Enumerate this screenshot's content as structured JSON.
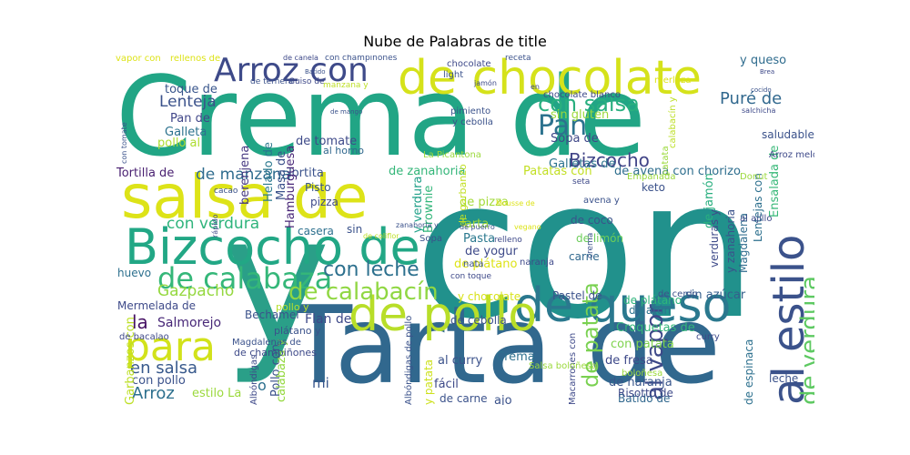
{
  "title": "Nube de Palabras de title",
  "chart_data": {
    "type": "wordcloud",
    "title": "Nube de Palabras de title",
    "colormap": "viridis",
    "words": [
      {
        "text": "con",
        "color": "#21918c"
      },
      {
        "text": "Crema de",
        "color": "#21a585"
      },
      {
        "text": "Tarta de",
        "color": "#31688e"
      },
      {
        "text": "y",
        "color": "#2a9f88"
      },
      {
        "text": "salsa de",
        "color": "#dde318"
      },
      {
        "text": "de chocolate",
        "color": "#d5e21a"
      },
      {
        "text": "Bizcocho de",
        "color": "#22a785"
      },
      {
        "text": "de queso",
        "color": "#2a788e"
      },
      {
        "text": "de pollo",
        "color": "#b8de29"
      },
      {
        "text": "para",
        "color": "#d2e21b"
      },
      {
        "text": "Arroz con",
        "color": "#3e4a89"
      },
      {
        "text": "al estilo",
        "color": "#3b528b"
      },
      {
        "text": "de calabaza",
        "color": "#35b779"
      },
      {
        "text": "de calabacín",
        "color": "#90d743"
      },
      {
        "text": "Pan",
        "color": "#2c728e"
      },
      {
        "text": "con salsa",
        "color": "#29af7f"
      },
      {
        "text": "Bizcocho",
        "color": "#414487"
      },
      {
        "text": "con leche",
        "color": "#2d708e"
      },
      {
        "text": "de verdura",
        "color": "#5ec962"
      },
      {
        "text": "al vapor",
        "color": "#3e4989"
      },
      {
        "text": "de patata",
        "color": "#7ad151"
      },
      {
        "text": "Puré de",
        "color": "#31688e"
      },
      {
        "text": "con verdura",
        "color": "#2fb47c"
      },
      {
        "text": "Gazpacho",
        "color": "#95d840"
      },
      {
        "text": "la",
        "color": "#471365"
      },
      {
        "text": "Lenteja",
        "color": "#3b528b"
      },
      {
        "text": "en salsa",
        "color": "#38598c"
      },
      {
        "text": "Arroz",
        "color": "#2d708e"
      },
      {
        "text": "de manzana",
        "color": "#2f6c8e"
      },
      {
        "text": "Tortilla de",
        "color": "#481f70"
      },
      {
        "text": "Tortita",
        "color": "#3b528b"
      },
      {
        "text": "Pan de",
        "color": "#404688"
      },
      {
        "text": "Galleta",
        "color": "#2c728e"
      },
      {
        "text": "pollo al",
        "color": "#addc30"
      },
      {
        "text": "toque de",
        "color": "#39568c"
      },
      {
        "text": "berenjena",
        "color": "#453781"
      },
      {
        "text": "Helado de",
        "color": "#2a788e"
      },
      {
        "text": "Masa de",
        "color": "#3b528b"
      },
      {
        "text": "Hamburguesa",
        "color": "#482677"
      },
      {
        "text": "de tomate",
        "color": "#3e4a89"
      },
      {
        "text": "al horno",
        "color": "#31688e"
      },
      {
        "text": "Sopa de",
        "color": "#3f4788"
      },
      {
        "text": "Galletas de",
        "color": "#2c738e"
      },
      {
        "text": "sin gluten",
        "color": "#9bd93c"
      },
      {
        "text": "de jamón",
        "color": "#29af7f"
      },
      {
        "text": "y queso",
        "color": "#2f6c8e"
      },
      {
        "text": "y verdura",
        "color": "#1fa088"
      },
      {
        "text": "de zanahoria",
        "color": "#34b679"
      },
      {
        "text": "Brownie",
        "color": "#32b67a"
      },
      {
        "text": "Patatas con",
        "color": "#c2df23"
      },
      {
        "text": "de avena con chorizo",
        "color": "#2e6e8e"
      },
      {
        "text": "Ensalada de",
        "color": "#37b878"
      },
      {
        "text": "saludable",
        "color": "#3b528b"
      },
      {
        "text": "Pisto",
        "color": "#39568c"
      },
      {
        "text": "pizza",
        "color": "#3e4989"
      },
      {
        "text": "de pizza",
        "color": "#a2da37"
      },
      {
        "text": "casera",
        "color": "#2d708e"
      },
      {
        "text": "sin",
        "color": "#3b528b"
      },
      {
        "text": "Tarta",
        "color": "#a0da39"
      },
      {
        "text": "Pasta",
        "color": "#2a788e"
      },
      {
        "text": "de yogur",
        "color": "#3e4a89"
      },
      {
        "text": "de plátano",
        "color": "#dde318"
      },
      {
        "text": "de coco",
        "color": "#3a538b"
      },
      {
        "text": "de limón",
        "color": "#6ccd5a"
      },
      {
        "text": "carne",
        "color": "#31688e"
      },
      {
        "text": "keto",
        "color": "#3b528b"
      },
      {
        "text": "verduras y",
        "color": "#3e4a89"
      },
      {
        "text": "y zanahoria",
        "color": "#3b528b"
      },
      {
        "text": "Magdalena",
        "color": "#2f6c8e"
      },
      {
        "text": "Lentejas con",
        "color": "#2d708e"
      },
      {
        "text": "sin azúcar",
        "color": "#355f8d"
      },
      {
        "text": "Pastel de",
        "color": "#3b528b"
      },
      {
        "text": "de atún",
        "color": "#2c728e"
      },
      {
        "text": "huevo",
        "color": "#2d708e"
      },
      {
        "text": "Mermelada de",
        "color": "#3e4a89"
      },
      {
        "text": "Salmorejo",
        "color": "#482878"
      },
      {
        "text": "Bechamel",
        "color": "#3b528b"
      },
      {
        "text": "Flan de",
        "color": "#3e4989"
      },
      {
        "text": "Pollo con",
        "color": "#3b528b"
      },
      {
        "text": "calabaza y",
        "color": "#95d840"
      },
      {
        "text": "mi",
        "color": "#39568c"
      },
      {
        "text": "Crema",
        "color": "#2d708e"
      },
      {
        "text": "al curry",
        "color": "#3b528b"
      },
      {
        "text": "fácil",
        "color": "#3e4a89"
      },
      {
        "text": "ajo",
        "color": "#3b528b"
      },
      {
        "text": "de fresa",
        "color": "#3e4989"
      },
      {
        "text": "de naranja",
        "color": "#39568c"
      },
      {
        "text": "Croquetas de",
        "color": "#34b679"
      },
      {
        "text": "con patata",
        "color": "#7fd34e"
      },
      {
        "text": "de plátano",
        "color": "#2fb47c"
      },
      {
        "text": "de carne",
        "color": "#3b528b"
      },
      {
        "text": "Batido de",
        "color": "#31688e"
      },
      {
        "text": "Risotto de",
        "color": "#3e4a89"
      },
      {
        "text": "leche",
        "color": "#3b528b"
      },
      {
        "text": "de espinaca",
        "color": "#2d708e"
      },
      {
        "text": "estilo La",
        "color": "#9bd93c"
      },
      {
        "text": "con pollo",
        "color": "#3b528b"
      },
      {
        "text": "Garbanzos con",
        "color": "#bddf26"
      },
      {
        "text": "o",
        "color": "#2d708e"
      },
      {
        "text": "Albóndigas",
        "color": "#3e4989"
      },
      {
        "text": "de garbanzo",
        "color": "#c2df23"
      },
      {
        "text": "de cebolla",
        "color": "#3b528b"
      },
      {
        "text": "y chocolate",
        "color": "#d8e219"
      },
      {
        "text": "de champiñones",
        "color": "#3e4a89"
      },
      {
        "text": "Magdalenas de",
        "color": "#3b528b"
      },
      {
        "text": "pollo y",
        "color": "#b5de2b"
      },
      {
        "text": "plátano y",
        "color": "#3b528b"
      },
      {
        "text": "de bacalao",
        "color": "#3e4989"
      },
      {
        "text": "Albóndigas de pollo",
        "color": "#3b528b"
      },
      {
        "text": "y patata",
        "color": "#cde11d"
      },
      {
        "text": "Macarrones con",
        "color": "#3e4989"
      },
      {
        "text": "de cerdo",
        "color": "#3b528b"
      },
      {
        "text": "curry",
        "color": "#3e4989"
      },
      {
        "text": "Salsa boloñesa",
        "color": "#9bd93c"
      },
      {
        "text": "boloñesa",
        "color": "#9bd93c"
      },
      {
        "text": "Arroz meloso",
        "color": "#3e4989"
      },
      {
        "text": "patata",
        "color": "#9bd93c"
      },
      {
        "text": "calabacín y",
        "color": "#bddf26"
      },
      {
        "text": "Empanada",
        "color": "#9bd93c"
      },
      {
        "text": "seta",
        "color": "#3e4989"
      },
      {
        "text": "La Picantona",
        "color": "#9bd93c"
      },
      {
        "text": "pimiento",
        "color": "#3b528b"
      },
      {
        "text": "y cebolla",
        "color": "#3b528b"
      },
      {
        "text": "chocolate blanco",
        "color": "#3e4a89"
      },
      {
        "text": "chocolate",
        "color": "#3e4989"
      },
      {
        "text": "light",
        "color": "#3b528b"
      },
      {
        "text": "merluza",
        "color": "#dde318"
      },
      {
        "text": "salchicha",
        "color": "#3e4989"
      },
      {
        "text": "Donut",
        "color": "#9bd93c"
      },
      {
        "text": "al ajillo",
        "color": "#3e4989"
      },
      {
        "text": "crema",
        "color": "#3b528b"
      },
      {
        "text": "naranja",
        "color": "#3e4989"
      },
      {
        "text": "nata",
        "color": "#3b528b"
      },
      {
        "text": "Sopa",
        "color": "#3b528b"
      },
      {
        "text": "relleno",
        "color": "#3e4989"
      },
      {
        "text": "zanahoria y",
        "color": "#3b528b"
      },
      {
        "text": "avena y",
        "color": "#3b528b"
      },
      {
        "text": "vegano",
        "color": "#dde318"
      },
      {
        "text": "con toque",
        "color": "#3e4989"
      },
      {
        "text": "receta",
        "color": "#3b528b"
      },
      {
        "text": "vapor con",
        "color": "#dde318"
      },
      {
        "text": "rellenos de",
        "color": "#dde318"
      },
      {
        "text": "de ternera",
        "color": "#3b528b"
      },
      {
        "text": "Guiso de",
        "color": "#3e4989"
      },
      {
        "text": "manzana y",
        "color": "#bddf26"
      },
      {
        "text": "con champiñones",
        "color": "#3b528b"
      },
      {
        "text": "de canela",
        "color": "#3e4989"
      },
      {
        "text": "con tomate",
        "color": "#3b528b"
      },
      {
        "text": "Mousse de",
        "color": "#dde318"
      },
      {
        "text": "cacao",
        "color": "#3b528b"
      },
      {
        "text": "rápido",
        "color": "#3e4989"
      },
      {
        "text": "de coliflor",
        "color": "#bddf26"
      },
      {
        "text": "de puerro",
        "color": "#3b528b"
      },
      {
        "text": "Batido",
        "color": "#3b528b"
      },
      {
        "text": "en",
        "color": "#3e4989"
      },
      {
        "text": "de mango",
        "color": "#3b528b"
      },
      {
        "text": "jamón",
        "color": "#3e4989"
      },
      {
        "text": "cocido",
        "color": "#3b528b"
      },
      {
        "text": "Brea",
        "color": "#3e4989"
      }
    ]
  }
}
